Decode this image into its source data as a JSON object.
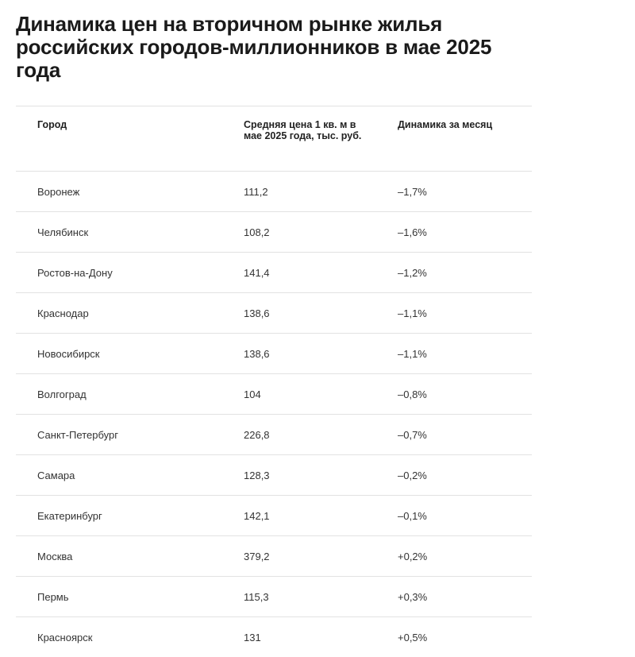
{
  "title": "Динамика цен на вторичном рынке жилья российских городов-миллионников в мае 2025 года",
  "table": {
    "headers": [
      "Город",
      "Средняя цена 1 кв. м в мае 2025 года, тыс. руб.",
      "Динамика за месяц"
    ],
    "rows": [
      [
        "Воронеж",
        "111,2",
        "–1,7%"
      ],
      [
        "Челябинск",
        "108,2",
        "–1,6%"
      ],
      [
        "Ростов-на-Дону",
        "141,4",
        "–1,2%"
      ],
      [
        "Краснодар",
        "138,6",
        "–1,1%"
      ],
      [
        "Новосибирск",
        "138,6",
        "–1,1%"
      ],
      [
        "Волгоград",
        "104",
        "–0,8%"
      ],
      [
        "Санкт-Петербург",
        "226,8",
        "–0,7%"
      ],
      [
        "Самара",
        "128,3",
        "–0,2%"
      ],
      [
        "Екатеринбург",
        "142,1",
        "–0,1%"
      ],
      [
        "Москва",
        "379,2",
        "+0,2%"
      ],
      [
        "Пермь",
        "115,3",
        "+0,3%"
      ],
      [
        "Красноярск",
        "131",
        "+0,5%"
      ]
    ]
  }
}
